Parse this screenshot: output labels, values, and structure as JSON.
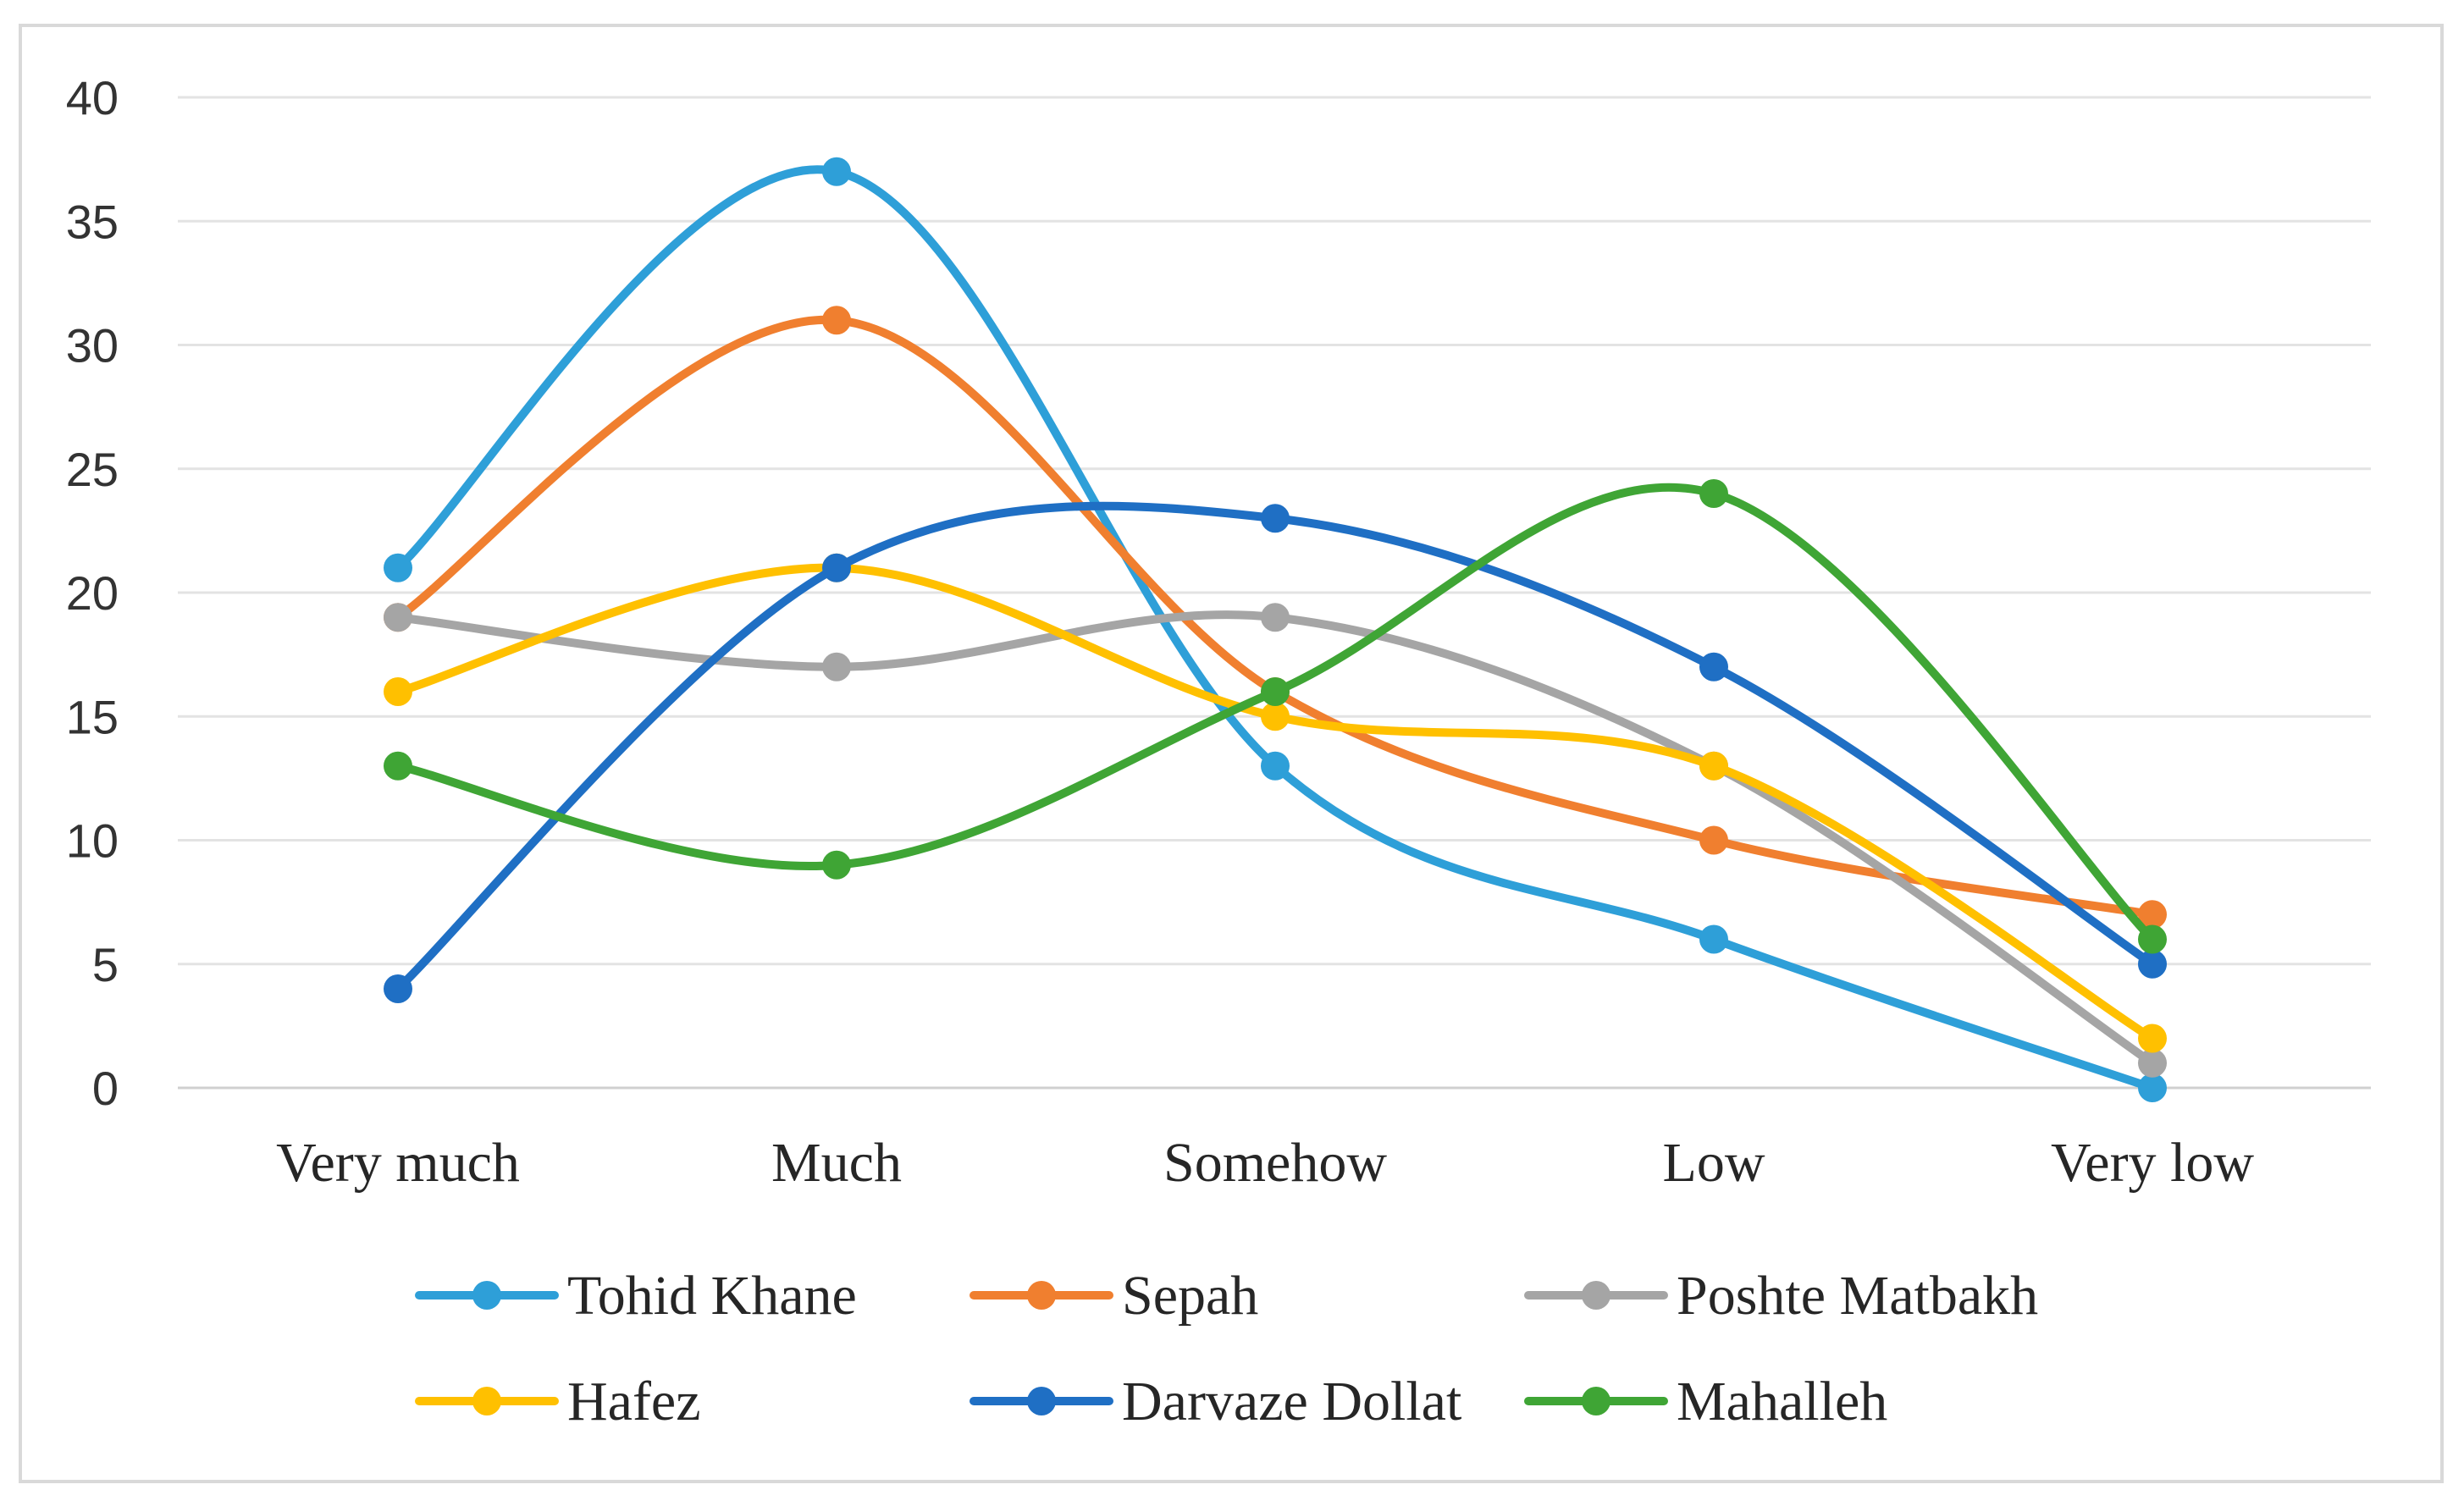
{
  "chart_data": {
    "type": "line",
    "smooth": true,
    "title": "",
    "xlabel": "",
    "ylabel": "",
    "categories": [
      "Very much",
      "Much",
      "Somehow",
      "Low",
      "Very low"
    ],
    "ylim": [
      0,
      40
    ],
    "yticks": [
      0,
      5,
      10,
      15,
      20,
      25,
      30,
      35,
      40
    ],
    "grid": true,
    "legend_position": "bottom",
    "series": [
      {
        "name": "Tohid Khane",
        "color": "#2e9fd8",
        "values": [
          21,
          37,
          13,
          6,
          0
        ]
      },
      {
        "name": "Sepah",
        "color": "#f07f2f",
        "values": [
          19,
          31,
          16,
          10,
          7
        ]
      },
      {
        "name": "Poshte Matbakh",
        "color": "#a5a5a5",
        "values": [
          19,
          17,
          19,
          13,
          1
        ]
      },
      {
        "name": "Hafez",
        "color": "#ffc000",
        "values": [
          16,
          21,
          15,
          13,
          2
        ]
      },
      {
        "name": "Darvaze  Dollat",
        "color": "#1f6fc4",
        "values": [
          4,
          21,
          23,
          17,
          5
        ]
      },
      {
        "name": "Mahalleh",
        "color": "#3fa535",
        "values": [
          13,
          9,
          16,
          24,
          6
        ]
      }
    ]
  }
}
